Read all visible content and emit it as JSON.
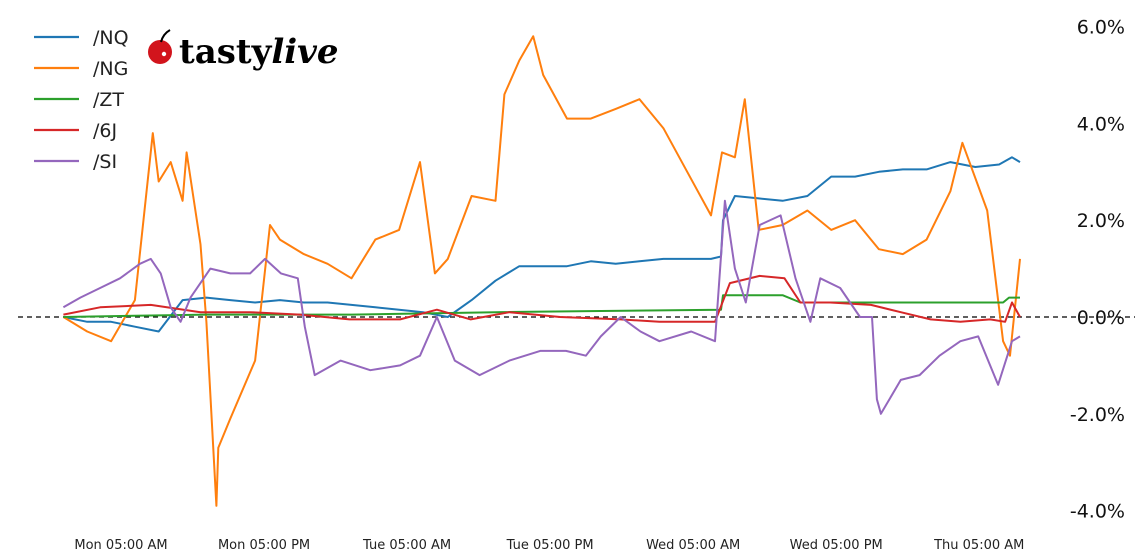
{
  "chart_data": {
    "type": "line",
    "title": "",
    "xlabel": "",
    "ylabel": "",
    "y_axis_position": "right",
    "y_format": "percent",
    "ylim": [
      -4.0,
      6.0
    ],
    "y_ticks": [
      "6.0%",
      "4.0%",
      "2.0%",
      "0.0%",
      "-2.0%",
      "-4.0%"
    ],
    "y_tick_values": [
      6,
      4,
      2,
      0,
      -2,
      -4
    ],
    "x_ticks": [
      "Mon 05:00 AM",
      "Mon 05:00 PM",
      "Tue 05:00 AM",
      "Tue 05:00 PM",
      "Wed 05:00 AM",
      "Wed 05:00 PM",
      "Thu 05:00 AM"
    ],
    "x_tick_values": [
      "Mon 05:00",
      "Mon 17:00",
      "Tue 05:00",
      "Tue 17:00",
      "Wed 05:00",
      "Wed 17:00",
      "Thu 05:00"
    ],
    "zero_line": "dashed black",
    "grid": false,
    "legend_position": "top-left",
    "logo": "tastylive",
    "series": [
      {
        "name": "/NQ",
        "color": "#1f77b4",
        "points": [
          [
            "Mon 00:10",
            0
          ],
          [
            "Mon 02:10",
            -0.1
          ],
          [
            "Mon 04:10",
            -0.1
          ],
          [
            "Mon 06:10",
            -0.2
          ],
          [
            "Mon 08:10",
            -0.3
          ],
          [
            "Mon 10:10",
            0.35
          ],
          [
            "Mon 12:10",
            0.4
          ],
          [
            "Mon 14:10",
            0.35
          ],
          [
            "Mon 16:15",
            0.3
          ],
          [
            "Mon 18:20",
            0.35
          ],
          [
            "Mon 20:20",
            0.3
          ],
          [
            "Mon 22:20",
            0.3
          ],
          [
            "Tue 00:20",
            0.25
          ],
          [
            "Tue 02:20",
            0.2
          ],
          [
            "Tue 04:20",
            0.15
          ],
          [
            "Tue 06:20",
            0.1
          ],
          [
            "Tue 08:25",
            0
          ],
          [
            "Tue 10:25",
            0.35
          ],
          [
            "Tue 12:25",
            0.75
          ],
          [
            "Tue 14:25",
            1.05
          ],
          [
            "Tue 16:25",
            1.05
          ],
          [
            "Tue 18:25",
            1.05
          ],
          [
            "Tue 20:25",
            1.15
          ],
          [
            "Tue 22:30",
            1.1
          ],
          [
            "Wed 00:30",
            1.15
          ],
          [
            "Wed 02:30",
            1.2
          ],
          [
            "Wed 04:30",
            1.2
          ],
          [
            "Wed 06:30",
            1.2
          ],
          [
            "Wed 07:20",
            1.25
          ],
          [
            "Wed 07:30",
            2.0
          ],
          [
            "Wed 08:30",
            2.5
          ],
          [
            "Wed 10:30",
            2.45
          ],
          [
            "Wed 12:30",
            2.4
          ],
          [
            "Wed 14:35",
            2.5
          ],
          [
            "Wed 16:35",
            2.9
          ],
          [
            "Wed 18:35",
            2.9
          ],
          [
            "Wed 20:35",
            3.0
          ],
          [
            "Wed 22:35",
            3.05
          ],
          [
            "Thu 00:35",
            3.05
          ],
          [
            "Thu 02:35",
            3.2
          ],
          [
            "Thu 04:40",
            3.1
          ],
          [
            "Thu 06:40",
            3.15
          ],
          [
            "Thu 07:45",
            3.3
          ],
          [
            "Thu 08:25",
            3.2
          ]
        ]
      },
      {
        "name": "/NG",
        "color": "#ff7f0e",
        "points": [
          [
            "Mon 00:10",
            0
          ],
          [
            "Mon 02:10",
            -0.3
          ],
          [
            "Mon 04:10",
            -0.5
          ],
          [
            "Mon 06:10",
            0.35
          ],
          [
            "Mon 07:40",
            3.8
          ],
          [
            "Mon 08:10",
            2.8
          ],
          [
            "Mon 09:10",
            3.2
          ],
          [
            "Mon 10:10",
            2.4
          ],
          [
            "Mon 10:30",
            3.4
          ],
          [
            "Mon 11:40",
            1.5
          ],
          [
            "Mon 12:10",
            -0.1
          ],
          [
            "Mon 13:00",
            -3.9
          ],
          [
            "Mon 13:10",
            -2.7
          ],
          [
            "Mon 14:10",
            -2.1
          ],
          [
            "Mon 16:15",
            -0.9
          ],
          [
            "Mon 17:30",
            1.9
          ],
          [
            "Mon 18:20",
            1.6
          ],
          [
            "Mon 20:20",
            1.3
          ],
          [
            "Mon 22:20",
            1.1
          ],
          [
            "Tue 00:20",
            0.8
          ],
          [
            "Tue 02:20",
            1.6
          ],
          [
            "Tue 04:20",
            1.8
          ],
          [
            "Tue 06:05",
            3.2
          ],
          [
            "Tue 07:20",
            0.9
          ],
          [
            "Tue 08:25",
            1.2
          ],
          [
            "Tue 10:25",
            2.5
          ],
          [
            "Tue 12:25",
            2.4
          ],
          [
            "Tue 13:10",
            4.6
          ],
          [
            "Tue 14:25",
            5.3
          ],
          [
            "Tue 15:35",
            5.8
          ],
          [
            "Tue 16:25",
            5.0
          ],
          [
            "Tue 18:25",
            4.1
          ],
          [
            "Tue 20:25",
            4.1
          ],
          [
            "Tue 22:30",
            4.3
          ],
          [
            "Wed 00:30",
            4.5
          ],
          [
            "Wed 02:30",
            3.9
          ],
          [
            "Wed 04:30",
            3.0
          ],
          [
            "Wed 06:30",
            2.1
          ],
          [
            "Wed 07:25",
            3.4
          ],
          [
            "Wed 08:30",
            3.3
          ],
          [
            "Wed 09:20",
            4.5
          ],
          [
            "Wed 10:30",
            1.8
          ],
          [
            "Wed 12:30",
            1.9
          ],
          [
            "Wed 14:35",
            2.2
          ],
          [
            "Wed 16:35",
            1.8
          ],
          [
            "Wed 18:35",
            2.0
          ],
          [
            "Wed 20:35",
            1.4
          ],
          [
            "Wed 22:35",
            1.3
          ],
          [
            "Thu 00:35",
            1.6
          ],
          [
            "Thu 02:35",
            2.6
          ],
          [
            "Thu 03:35",
            3.6
          ],
          [
            "Thu 05:40",
            2.2
          ],
          [
            "Thu 07:00",
            -0.5
          ],
          [
            "Thu 07:35",
            -0.8
          ],
          [
            "Thu 08:25",
            1.2
          ]
        ]
      },
      {
        "name": "/ZT",
        "color": "#2ca02c",
        "points": [
          [
            "Mon 00:10",
            0
          ],
          [
            "Mon 12:10",
            0.05
          ],
          [
            "Tue 00:20",
            0.05
          ],
          [
            "Tue 12:25",
            0.1
          ],
          [
            "Wed 07:20",
            0.15
          ],
          [
            "Wed 07:30",
            0.45
          ],
          [
            "Wed 12:30",
            0.45
          ],
          [
            "Wed 14:00",
            0.3
          ],
          [
            "Thu 07:00",
            0.3
          ],
          [
            "Thu 07:30",
            0.4
          ],
          [
            "Thu 08:25",
            0.4
          ]
        ]
      },
      {
        "name": "/6J",
        "color": "#d62728",
        "points": [
          [
            "Mon 00:10",
            0.05
          ],
          [
            "Mon 03:15",
            0.2
          ],
          [
            "Mon 07:30",
            0.25
          ],
          [
            "Mon 11:40",
            0.1
          ],
          [
            "Mon 15:50",
            0.1
          ],
          [
            "Mon 20:00",
            0.05
          ],
          [
            "Tue 00:10",
            -0.05
          ],
          [
            "Tue 04:25",
            -0.05
          ],
          [
            "Tue 07:30",
            0.15
          ],
          [
            "Tue 10:20",
            -0.05
          ],
          [
            "Tue 13:35",
            0.1
          ],
          [
            "Tue 17:50",
            0
          ],
          [
            "Tue 22:55",
            -0.05
          ],
          [
            "Wed 02:10",
            -0.1
          ],
          [
            "Wed 06:50",
            -0.1
          ],
          [
            "Wed 08:05",
            0.7
          ],
          [
            "Wed 10:35",
            0.85
          ],
          [
            "Wed 12:40",
            0.8
          ],
          [
            "Wed 14:00",
            0.3
          ],
          [
            "Wed 16:30",
            0.3
          ],
          [
            "Wed 19:55",
            0.25
          ],
          [
            "Wed 22:25",
            0.1
          ],
          [
            "Thu 00:55",
            -0.05
          ],
          [
            "Thu 03:25",
            -0.1
          ],
          [
            "Thu 05:55",
            -0.05
          ],
          [
            "Thu 07:10",
            -0.1
          ],
          [
            "Thu 07:45",
            0.3
          ],
          [
            "Thu 08:25",
            0
          ]
        ]
      },
      {
        "name": "/SI",
        "color": "#9467bd",
        "points": [
          [
            "Mon 00:10",
            0.2
          ],
          [
            "Mon 01:35",
            0.4
          ],
          [
            "Mon 03:15",
            0.6
          ],
          [
            "Mon 04:55",
            0.8
          ],
          [
            "Mon 06:35",
            1.1
          ],
          [
            "Mon 07:30",
            1.2
          ],
          [
            "Mon 08:20",
            0.9
          ],
          [
            "Mon 09:10",
            0.2
          ],
          [
            "Mon 10:00",
            -0.1
          ],
          [
            "Mon 10:50",
            0.4
          ],
          [
            "Mon 12:30",
            1.0
          ],
          [
            "Mon 14:10",
            0.9
          ],
          [
            "Mon 15:50",
            0.9
          ],
          [
            "Mon 17:05",
            1.2
          ],
          [
            "Mon 18:25",
            0.9
          ],
          [
            "Mon 19:50",
            0.8
          ],
          [
            "Mon 20:25",
            -0.2
          ],
          [
            "Mon 21:15",
            -1.2
          ],
          [
            "Mon 23:25",
            -0.9
          ],
          [
            "Tue 01:55",
            -1.1
          ],
          [
            "Tue 04:25",
            -1.0
          ],
          [
            "Tue 06:05",
            -0.8
          ],
          [
            "Tue 07:30",
            0
          ],
          [
            "Tue 09:00",
            -0.9
          ],
          [
            "Tue 11:05",
            -1.2
          ],
          [
            "Tue 13:35",
            -0.9
          ],
          [
            "Tue 16:10",
            -0.7
          ],
          [
            "Tue 18:20",
            -0.7
          ],
          [
            "Tue 20:00",
            -0.8
          ],
          [
            "Tue 21:15",
            -0.4
          ],
          [
            "Tue 22:55",
            0
          ],
          [
            "Wed 00:35",
            -0.3
          ],
          [
            "Wed 02:10",
            -0.5
          ],
          [
            "Wed 04:50",
            -0.3
          ],
          [
            "Wed 06:50",
            -0.5
          ],
          [
            "Wed 07:40",
            2.4
          ],
          [
            "Wed 08:30",
            1.0
          ],
          [
            "Wed 09:25",
            0.3
          ],
          [
            "Wed 10:35",
            1.9
          ],
          [
            "Wed 12:20",
            2.1
          ],
          [
            "Wed 13:35",
            0.8
          ],
          [
            "Wed 14:50",
            -0.1
          ],
          [
            "Wed 15:40",
            0.8
          ],
          [
            "Wed 17:20",
            0.6
          ],
          [
            "Wed 19:00",
            0
          ],
          [
            "Wed 20:00",
            0
          ],
          [
            "Wed 20:25",
            -1.7
          ],
          [
            "Wed 20:45",
            -2.0
          ],
          [
            "Wed 22:25",
            -1.3
          ],
          [
            "Thu 00:00",
            -1.2
          ],
          [
            "Thu 01:40",
            -0.8
          ],
          [
            "Thu 03:25",
            -0.5
          ],
          [
            "Thu 04:55",
            -0.4
          ],
          [
            "Thu 06:35",
            -1.4
          ],
          [
            "Thu 07:45",
            -0.5
          ],
          [
            "Thu 08:25",
            -0.4
          ]
        ]
      }
    ]
  }
}
